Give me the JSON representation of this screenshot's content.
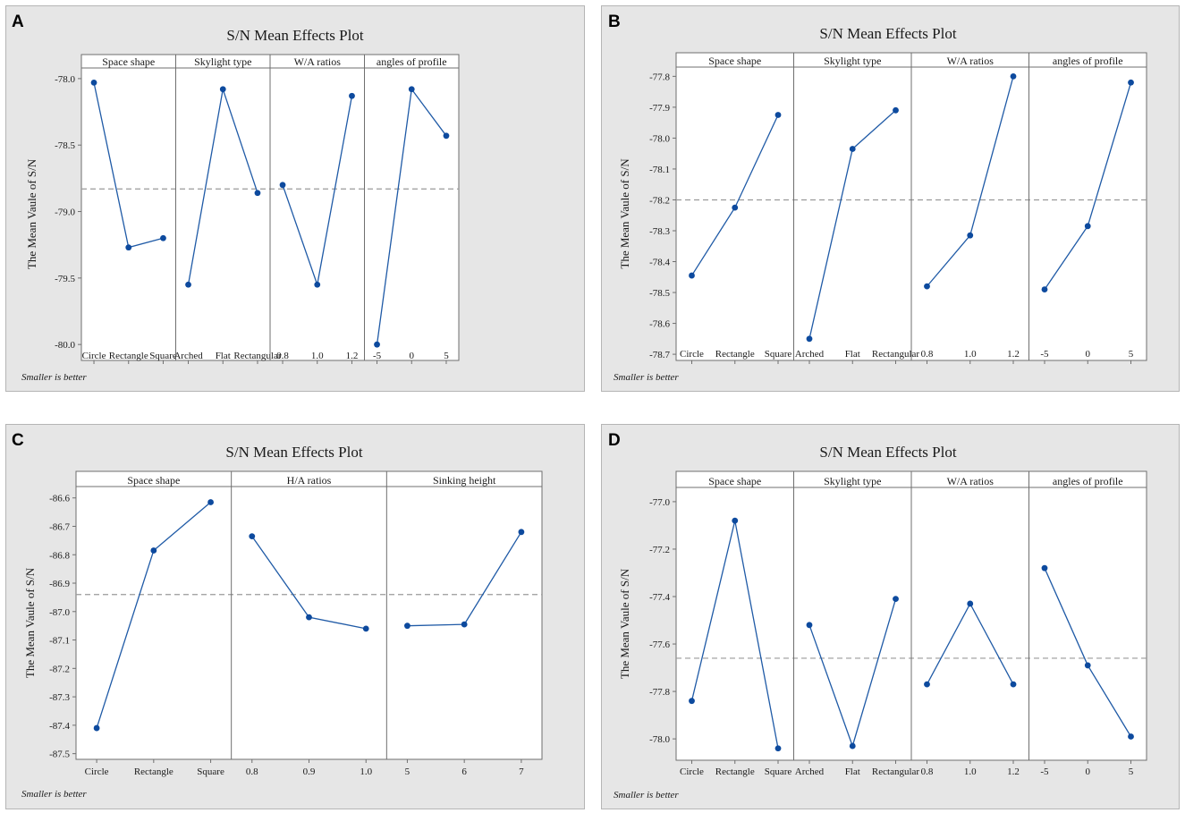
{
  "colors": {
    "series": "#1f5aa6",
    "marker": "#0d4a9e",
    "reference_line": "#9a9a9a",
    "panel_bg": "#e6e6e6",
    "plot_bg": "#ffffff"
  },
  "panels": [
    {
      "letter": "A"
    },
    {
      "letter": "B"
    },
    {
      "letter": "C"
    },
    {
      "letter": "D"
    }
  ],
  "chart_data": [
    {
      "type": "line",
      "title": "S/N Mean Effects Plot",
      "ylabel": "The Mean Vaule of S/N",
      "note": "Smaller is better",
      "ylim": [
        -80.12,
        -77.92
      ],
      "yticks": [
        -78.0,
        -78.5,
        -79.0,
        -79.5,
        -80.0
      ],
      "ytick_labels": [
        "-78.0",
        "-78.5",
        "-79.0",
        "-79.5",
        "-80.0"
      ],
      "mean_line": -78.83,
      "facets": [
        {
          "name": "Space shape",
          "categories": [
            "Circle",
            "Rectangle",
            "Square"
          ],
          "values": [
            -78.03,
            -79.27,
            -79.2
          ]
        },
        {
          "name": "Skylight type",
          "categories": [
            "Arched",
            "Flat",
            "Rectangular"
          ],
          "values": [
            -79.55,
            -78.08,
            -78.86
          ]
        },
        {
          "name": "W/A ratios",
          "categories": [
            "0.8",
            "1.0",
            "1.2"
          ],
          "values": [
            -78.8,
            -79.55,
            -78.13
          ]
        },
        {
          "name": "angles of profile",
          "categories": [
            "-5",
            "0",
            "5"
          ],
          "values": [
            -80.0,
            -78.08,
            -78.43
          ]
        }
      ]
    },
    {
      "type": "line",
      "title": "S/N Mean Effects Plot",
      "ylabel": "The Mean Vaule of S/N",
      "note": "Smaller is better",
      "ylim": [
        -78.72,
        -77.77
      ],
      "yticks": [
        -77.8,
        -77.9,
        -78.0,
        -78.1,
        -78.2,
        -78.3,
        -78.4,
        -78.5,
        -78.6,
        -78.7
      ],
      "ytick_labels": [
        "-77.8",
        "-77.9",
        "-78.0",
        "-78.1",
        "-78.2",
        "-78.3",
        "-78.4",
        "-78.5",
        "-78.6",
        "-78.7"
      ],
      "mean_line": -78.2,
      "facets": [
        {
          "name": "Space shape",
          "categories": [
            "Circle",
            "Rectangle",
            "Square"
          ],
          "values": [
            -78.445,
            -78.225,
            -77.925
          ]
        },
        {
          "name": "Skylight type",
          "categories": [
            "Arched",
            "Flat",
            "Rectangular"
          ],
          "values": [
            -78.65,
            -78.035,
            -77.91
          ]
        },
        {
          "name": "W/A ratios",
          "categories": [
            "0.8",
            "1.0",
            "1.2"
          ],
          "values": [
            -78.48,
            -78.315,
            -77.8
          ]
        },
        {
          "name": "angles of profile",
          "categories": [
            "-5",
            "0",
            "5"
          ],
          "values": [
            -78.49,
            -78.285,
            -77.82
          ]
        }
      ]
    },
    {
      "type": "line",
      "title": "S/N Mean Effects Plot",
      "ylabel": "The Mean Vaule of S/N",
      "note": "Smaller is better",
      "ylim": [
        -87.52,
        -86.56
      ],
      "yticks": [
        -86.6,
        -86.7,
        -86.8,
        -86.9,
        -87.0,
        -87.1,
        -87.2,
        -87.3,
        -87.4,
        -87.5
      ],
      "ytick_labels": [
        "-86.6",
        "-86.7",
        "-86.8",
        "-86.9",
        "-87.0",
        "-87.1",
        "-87.2",
        "-87.3",
        "-87.4",
        "-87.5"
      ],
      "mean_line": -86.94,
      "facets": [
        {
          "name": "Space shape",
          "categories": [
            "Circle",
            "Rectangle",
            "Square"
          ],
          "values": [
            -87.41,
            -86.785,
            -86.615
          ]
        },
        {
          "name": "H/A ratios",
          "categories": [
            "0.8",
            "0.9",
            "1.0"
          ],
          "values": [
            -86.735,
            -87.02,
            -87.06
          ]
        },
        {
          "name": "Sinking height",
          "categories": [
            "5",
            "6",
            "7"
          ],
          "values": [
            -87.05,
            -87.045,
            -86.72
          ]
        }
      ]
    },
    {
      "type": "line",
      "title": "S/N Mean Effects Plot",
      "ylabel": "The Mean Vaule of S/N",
      "note": "Smaller is better",
      "ylim": [
        -78.09,
        -76.94
      ],
      "yticks": [
        -77.0,
        -77.2,
        -77.4,
        -77.6,
        -77.8,
        -78.0
      ],
      "ytick_labels": [
        "-77.0",
        "-77.2",
        "-77.4",
        "-77.6",
        "-77.8",
        "-78.0"
      ],
      "mean_line": -77.66,
      "facets": [
        {
          "name": "Space shape",
          "categories": [
            "Circle",
            "Rectangle",
            "Square"
          ],
          "values": [
            -77.84,
            -77.08,
            -78.04
          ]
        },
        {
          "name": "Skylight type",
          "categories": [
            "Arched",
            "Flat",
            "Rectangular"
          ],
          "values": [
            -77.52,
            -78.03,
            -77.41
          ]
        },
        {
          "name": "W/A ratios",
          "categories": [
            "0.8",
            "1.0",
            "1.2"
          ],
          "values": [
            -77.77,
            -77.43,
            -77.77
          ]
        },
        {
          "name": "angles of profile",
          "categories": [
            "-5",
            "0",
            "5"
          ],
          "values": [
            -77.28,
            -77.69,
            -77.99
          ]
        }
      ]
    }
  ]
}
